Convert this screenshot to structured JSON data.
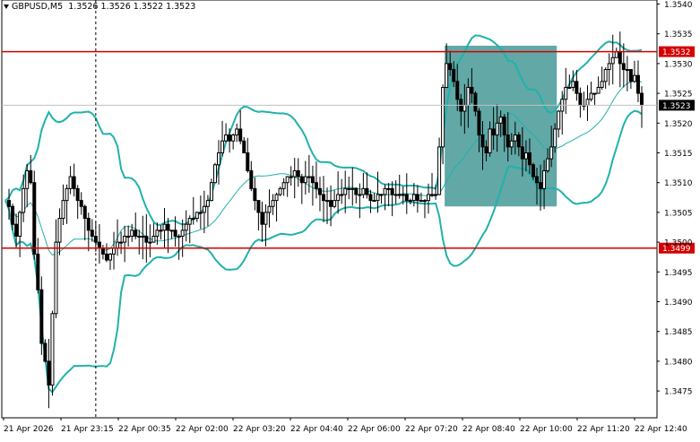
{
  "header": {
    "symbol": "GBPUSD,M5",
    "open": "1.3526",
    "high": "1.3526",
    "low": "1.3522",
    "close": "1.3523"
  },
  "colors": {
    "background": "#ffffff",
    "candles": "#000000",
    "bands": "#20b2aa",
    "level_lines": "#d40000",
    "box": "#2e8b89",
    "current_price_badge": "#000000"
  },
  "chart_data": {
    "type": "candlestick",
    "ylim": [
      1.347,
      1.3542
    ],
    "y_ticks": [
      "1.3540",
      "1.3535",
      "1.3530",
      "1.3525",
      "1.3520",
      "1.3515",
      "1.3510",
      "1.3505",
      "1.3500",
      "1.3495",
      "1.3490",
      "1.3485",
      "1.3480",
      "1.3475"
    ],
    "x_ticks": [
      "21 Apr 2026",
      "21 Apr 23:15",
      "22 Apr 00:35",
      "22 Apr 02:00",
      "22 Apr 03:20",
      "22 Apr 04:40",
      "22 Apr 06:00",
      "22 Apr 07:20",
      "22 Apr 08:40",
      "22 Apr 10:00",
      "22 Apr 11:20",
      "22 Apr 12:40"
    ],
    "levels": [
      {
        "price": 1.3532,
        "label": "1.3532",
        "color": "#d40000"
      },
      {
        "price": 1.3499,
        "label": "1.3499",
        "color": "#d40000"
      }
    ],
    "current_price": {
      "price": 1.3523,
      "label": "1.3523"
    },
    "box": {
      "start_index": 122,
      "end_index": 152,
      "high": 1.3533,
      "low": 1.3506
    },
    "period_separator_index": 25,
    "closes": [
      1.3507,
      1.3506,
      1.3503,
      1.3501,
      1.3505,
      1.3509,
      1.3512,
      1.351,
      1.3498,
      1.3492,
      1.3483,
      1.348,
      1.3476,
      1.3488,
      1.35,
      1.3504,
      1.3507,
      1.3509,
      1.3511,
      1.3509,
      1.3507,
      1.3506,
      1.3504,
      1.3502,
      1.3501,
      1.35,
      1.3499,
      1.3498,
      1.3497,
      1.3498,
      1.3499,
      1.35,
      1.35,
      1.3501,
      1.3501,
      1.3502,
      1.3501,
      1.3501,
      1.3501,
      1.35,
      1.35,
      1.3501,
      1.3502,
      1.3502,
      1.3503,
      1.3502,
      1.3502,
      1.3501,
      1.3501,
      1.3502,
      1.3503,
      1.3504,
      1.3504,
      1.3505,
      1.3505,
      1.3506,
      1.3507,
      1.351,
      1.3513,
      1.3515,
      1.3517,
      1.3518,
      1.3517,
      1.3518,
      1.3519,
      1.3517,
      1.3515,
      1.3512,
      1.3509,
      1.3507,
      1.3505,
      1.3503,
      1.3505,
      1.3506,
      1.3507,
      1.3508,
      1.3509,
      1.351,
      1.3511,
      1.3511,
      1.3512,
      1.3511,
      1.351,
      1.3511,
      1.3511,
      1.351,
      1.3509,
      1.3508,
      1.3507,
      1.3507,
      1.3506,
      1.3507,
      1.3508,
      1.3508,
      1.3509,
      1.3509,
      1.3509,
      1.3508,
      1.3508,
      1.3509,
      1.3508,
      1.3507,
      1.3507,
      1.3508,
      1.3508,
      1.3509,
      1.3509,
      1.3508,
      1.3508,
      1.3508,
      1.3508,
      1.3507,
      1.3507,
      1.3508,
      1.3507,
      1.3507,
      1.3507,
      1.3508,
      1.3508,
      1.3508,
      1.3516,
      1.3526,
      1.353,
      1.3529,
      1.3527,
      1.3524,
      1.3522,
      1.3523,
      1.3526,
      1.3525,
      1.3522,
      1.3518,
      1.3516,
      1.3515,
      1.3519,
      1.3518,
      1.352,
      1.3521,
      1.3518,
      1.3516,
      1.3517,
      1.3518,
      1.3516,
      1.3514,
      1.3515,
      1.3513,
      1.3511,
      1.351,
      1.3509,
      1.3512,
      1.3514,
      1.3516,
      1.3519,
      1.3522,
      1.3524,
      1.3526,
      1.3526,
      1.3527,
      1.3525,
      1.3523,
      1.3523,
      1.3524,
      1.3525,
      1.3525,
      1.3526,
      1.3527,
      1.3529,
      1.353,
      1.3531,
      1.3532,
      1.353,
      1.3529,
      1.3529,
      1.3527,
      1.3528,
      1.3525,
      1.3523
    ]
  }
}
